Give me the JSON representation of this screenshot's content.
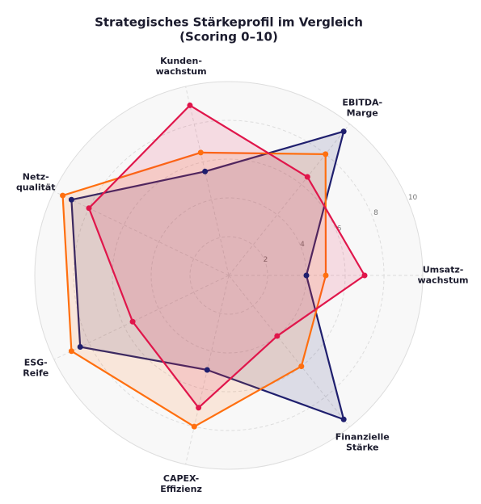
{
  "chart_data": {
    "type": "radar",
    "title": [
      "Strategisches Stärkeprofil im Vergleich",
      "(Scoring 0–10)"
    ],
    "categories": [
      "Umsatz-\nwachstum",
      "EBITDA-\nMarge",
      "Kunden-\nwachstum",
      "Netz-\nqualität",
      "ESG-\nReife",
      "CAPEX-\nEffizienz",
      "Finanzielle\nStärke"
    ],
    "ylim": [
      0,
      10
    ],
    "yticks": [
      2,
      4,
      6,
      8,
      10
    ],
    "grid": true,
    "series": [
      {
        "color": "#1f1f6e",
        "values": [
          4,
          9.5,
          5.5,
          9,
          8.5,
          5,
          9.5
        ]
      },
      {
        "color": "#ff6f0f",
        "values": [
          5,
          8,
          6.5,
          9.5,
          9,
          8,
          6
        ]
      },
      {
        "color": "#e0164b",
        "values": [
          7,
          6.5,
          9,
          8,
          5.5,
          7,
          4
        ]
      }
    ]
  }
}
